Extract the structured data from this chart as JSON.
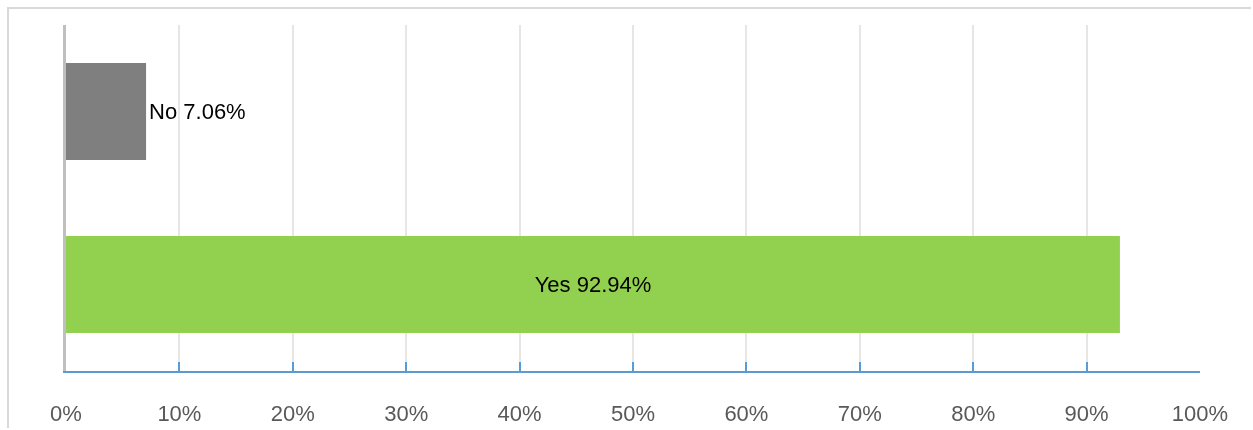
{
  "chart_data": {
    "type": "bar",
    "orientation": "horizontal",
    "categories": [
      null,
      null
    ],
    "values": [
      7.06,
      92.94
    ],
    "colors": [
      "#7f7f7f",
      "#92d050"
    ],
    "value_labels": [
      "No 7.06%",
      "Yes 92.94%"
    ],
    "xlim": [
      0,
      100
    ],
    "xticks": [
      {
        "value": 0,
        "label": "0%"
      },
      {
        "value": 10,
        "label": "10%"
      },
      {
        "value": 20,
        "label": "20%"
      },
      {
        "value": 30,
        "label": "30%"
      },
      {
        "value": 40,
        "label": "40%"
      },
      {
        "value": 50,
        "label": "50%"
      },
      {
        "value": 60,
        "label": "60%"
      },
      {
        "value": 70,
        "label": "70%"
      },
      {
        "value": 80,
        "label": "80%"
      },
      {
        "value": 90,
        "label": "90%"
      },
      {
        "value": 100,
        "label": "100%"
      }
    ],
    "grid": "x",
    "tick_labels": "x"
  }
}
